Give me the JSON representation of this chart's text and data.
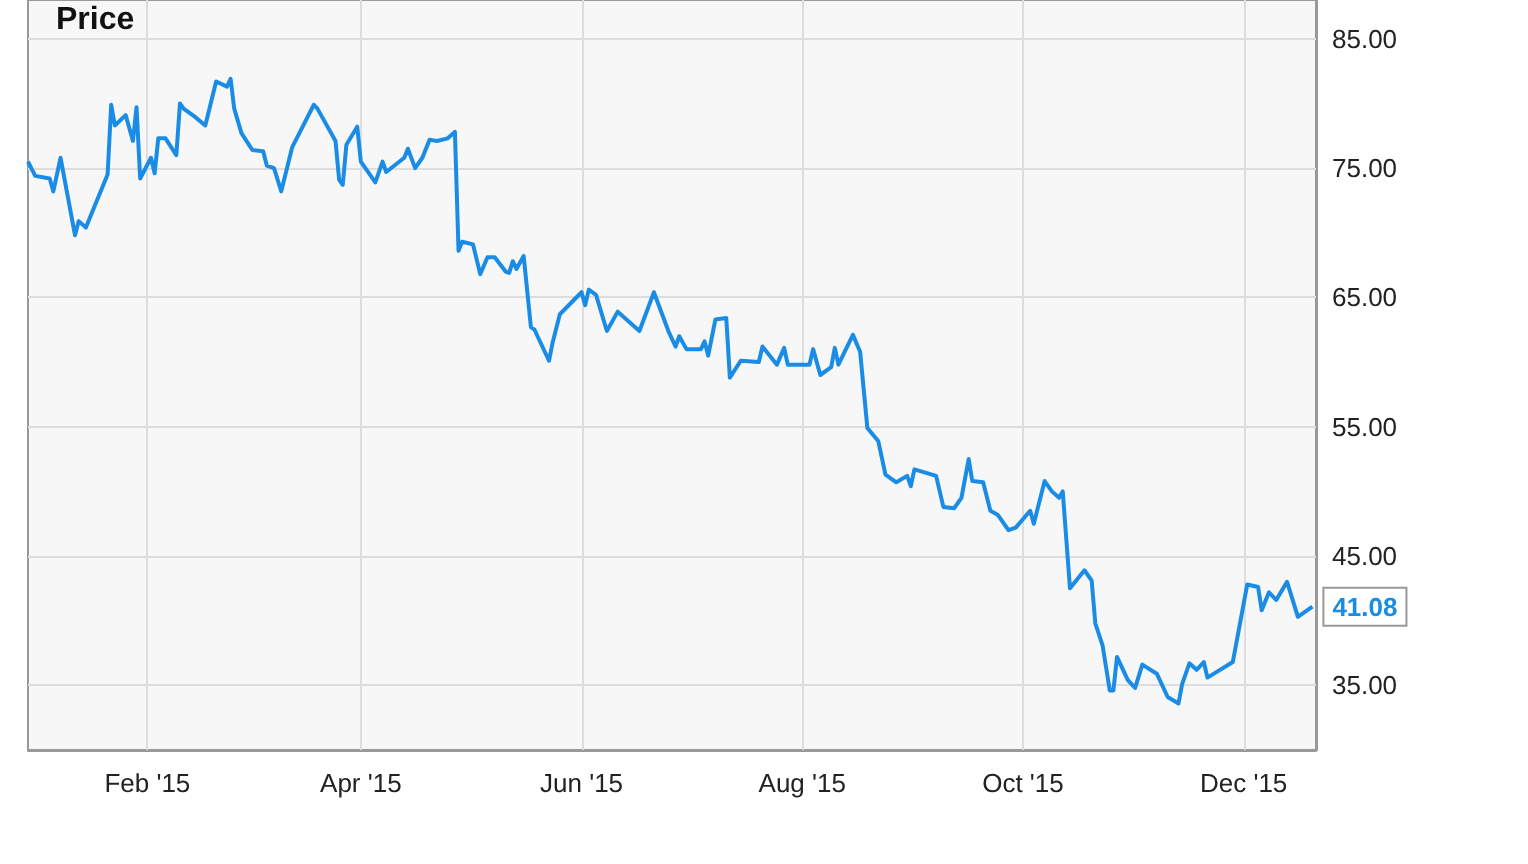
{
  "chart_data": {
    "type": "line",
    "title": "Price",
    "x": [
      "2014-12-30",
      "2015-01-01",
      "2015-01-05",
      "2015-01-06",
      "2015-01-08",
      "2015-01-12",
      "2015-01-13",
      "2015-01-15",
      "2015-01-21",
      "2015-01-22",
      "2015-01-23",
      "2015-01-26",
      "2015-01-28",
      "2015-01-29",
      "2015-01-30",
      "2015-02-02",
      "2015-02-03",
      "2015-02-04",
      "2015-02-06",
      "2015-02-09",
      "2015-02-10",
      "2015-02-11",
      "2015-02-14",
      "2015-02-17",
      "2015-02-20",
      "2015-02-23",
      "2015-02-24",
      "2015-02-25",
      "2015-02-27",
      "2015-03-02",
      "2015-03-05",
      "2015-03-06",
      "2015-03-08",
      "2015-03-10",
      "2015-03-13",
      "2015-03-19",
      "2015-03-20",
      "2015-03-25",
      "2015-03-26",
      "2015-03-27",
      "2015-03-28",
      "2015-03-31",
      "2015-04-01",
      "2015-04-05",
      "2015-04-07",
      "2015-04-08",
      "2015-04-13",
      "2015-04-14",
      "2015-04-16",
      "2015-04-18",
      "2015-04-20",
      "2015-04-22",
      "2015-04-25",
      "2015-04-27",
      "2015-04-28",
      "2015-04-29",
      "2015-05-02",
      "2015-05-04",
      "2015-05-06",
      "2015-05-08",
      "2015-05-11",
      "2015-05-12",
      "2015-05-13",
      "2015-05-14",
      "2015-05-16",
      "2015-05-18",
      "2015-05-19",
      "2015-05-23",
      "2015-05-24",
      "2015-05-26",
      "2015-06-01",
      "2015-06-02",
      "2015-06-03",
      "2015-06-05",
      "2015-06-08",
      "2015-06-11",
      "2015-06-17",
      "2015-06-21",
      "2015-06-25",
      "2015-06-27",
      "2015-06-28",
      "2015-06-30",
      "2015-07-04",
      "2015-07-05",
      "2015-07-06",
      "2015-07-08",
      "2015-07-11",
      "2015-07-12",
      "2015-07-15",
      "2015-07-20",
      "2015-07-21",
      "2015-07-25",
      "2015-07-27",
      "2015-07-28",
      "2015-08-03",
      "2015-08-04",
      "2015-08-06",
      "2015-08-09",
      "2015-08-10",
      "2015-08-11",
      "2015-08-15",
      "2015-08-17",
      "2015-08-19",
      "2015-08-22",
      "2015-08-24",
      "2015-08-27",
      "2015-08-30",
      "2015-08-31",
      "2015-09-01",
      "2015-09-07",
      "2015-09-09",
      "2015-09-12",
      "2015-09-14",
      "2015-09-16",
      "2015-09-17",
      "2015-09-20",
      "2015-09-22",
      "2015-09-24",
      "2015-09-27",
      "2015-09-29",
      "2015-10-03",
      "2015-10-04",
      "2015-10-07",
      "2015-10-09",
      "2015-10-11",
      "2015-10-12",
      "2015-10-14",
      "2015-10-18",
      "2015-10-20",
      "2015-10-21",
      "2015-10-23",
      "2015-10-25",
      "2015-10-26",
      "2015-10-27",
      "2015-10-30",
      "2015-11-01",
      "2015-11-03",
      "2015-11-07",
      "2015-11-10",
      "2015-11-13",
      "2015-11-14",
      "2015-11-16",
      "2015-11-18",
      "2015-11-20",
      "2015-11-21",
      "2015-11-28",
      "2015-12-02",
      "2015-12-05",
      "2015-12-06",
      "2015-12-08",
      "2015-12-10",
      "2015-12-13",
      "2015-12-16",
      "2015-12-20"
    ],
    "series": [
      {
        "color": "#1a8ce6",
        "values": [
          75.5,
          74.4,
          74.2,
          73.2,
          75.8,
          69.8,
          70.9,
          70.4,
          74.5,
          79.9,
          78.3,
          79.1,
          77.1,
          79.7,
          74.2,
          75.8,
          74.6,
          77.3,
          77.3,
          76.0,
          80.0,
          79.6,
          79.0,
          78.3,
          81.7,
          81.3,
          81.9,
          79.6,
          77.7,
          76.4,
          76.3,
          75.2,
          75.0,
          73.2,
          76.6,
          79.9,
          79.6,
          77.1,
          74.1,
          73.7,
          76.8,
          78.2,
          75.5,
          73.9,
          75.5,
          74.7,
          75.8,
          76.5,
          75.0,
          75.8,
          77.2,
          77.1,
          77.3,
          77.8,
          68.6,
          69.3,
          69.1,
          66.8,
          68.1,
          68.1,
          67.0,
          66.9,
          67.8,
          67.2,
          68.2,
          62.7,
          62.5,
          60.1,
          61.5,
          63.7,
          65.4,
          64.4,
          65.6,
          65.2,
          62.4,
          63.9,
          62.4,
          65.4,
          62.4,
          61.2,
          62.0,
          61.0,
          61.0,
          61.6,
          60.5,
          63.3,
          63.4,
          58.8,
          60.1,
          60.0,
          61.2,
          59.8,
          61.1,
          59.8,
          59.8,
          61.0,
          59.0,
          59.6,
          61.1,
          59.8,
          62.1,
          60.8,
          54.9,
          53.9,
          51.3,
          50.7,
          51.2,
          50.4,
          51.7,
          51.2,
          48.8,
          48.7,
          49.5,
          52.5,
          50.8,
          50.7,
          48.5,
          48.2,
          47.0,
          47.2,
          48.5,
          47.5,
          50.8,
          50.0,
          49.5,
          50.0,
          42.5,
          43.9,
          43.1,
          39.8,
          38.1,
          34.6,
          34.6,
          37.2,
          35.4,
          34.8,
          36.6,
          35.9,
          34.1,
          33.6,
          35.1,
          36.7,
          36.2,
          36.8,
          35.6,
          36.8,
          42.8,
          42.6,
          40.8,
          42.2,
          41.6,
          43.0,
          40.3,
          41.08
        ],
        "value_labels": [
          null,
          null,
          null,
          null,
          null,
          null,
          null,
          null,
          null,
          null,
          null,
          null,
          null,
          null,
          null,
          null,
          null,
          null,
          null,
          null,
          null,
          null,
          null,
          null,
          null,
          null,
          null,
          null,
          null,
          null,
          null,
          null,
          null,
          null,
          null,
          null,
          null,
          null,
          null,
          null,
          null,
          null,
          null,
          null,
          null,
          null,
          null,
          null,
          null,
          null,
          null,
          null,
          null,
          null,
          null,
          null,
          null,
          null,
          null,
          null,
          null,
          null,
          null,
          null,
          null,
          null,
          null,
          null,
          null,
          null,
          null,
          null,
          null,
          null,
          null,
          null,
          null,
          null,
          null,
          null,
          null,
          null,
          null,
          null,
          null,
          null,
          null,
          null,
          null,
          null,
          null,
          null,
          null,
          null,
          null,
          null,
          null,
          null,
          null,
          null,
          null,
          null,
          null,
          null,
          null,
          null,
          null,
          null,
          null,
          null,
          null,
          null,
          null,
          null,
          null,
          null,
          null,
          null,
          null,
          null,
          null,
          null,
          null,
          null,
          null,
          null,
          null,
          null,
          null,
          null,
          null,
          null,
          null,
          null,
          null,
          null,
          null,
          null,
          null,
          null,
          null,
          null,
          null,
          null,
          null,
          null,
          null,
          null,
          null,
          null,
          null,
          null,
          null,
          "41.08"
        ]
      }
    ],
    "xlim": [
      "2014-12-30",
      "2015-12-21"
    ],
    "xticks": [
      {
        "value": "2015-02-01",
        "label": "Feb '15"
      },
      {
        "value": "2015-04-01",
        "label": "Apr '15"
      },
      {
        "value": "2015-06-01",
        "label": "Jun '15"
      },
      {
        "value": "2015-08-01",
        "label": "Aug '15"
      },
      {
        "value": "2015-10-01",
        "label": "Oct '15"
      },
      {
        "value": "2015-12-01",
        "label": "Dec '15"
      }
    ],
    "ylim": [
      30,
      88
    ],
    "yticks": [
      {
        "value": 35,
        "label": "35.00"
      },
      {
        "value": 45,
        "label": "45.00"
      },
      {
        "value": 55,
        "label": "55.00"
      },
      {
        "value": 65,
        "label": "65.00"
      },
      {
        "value": 75,
        "label": "75.00"
      },
      {
        "value": 85,
        "label": "85.00"
      }
    ],
    "grid": true
  }
}
